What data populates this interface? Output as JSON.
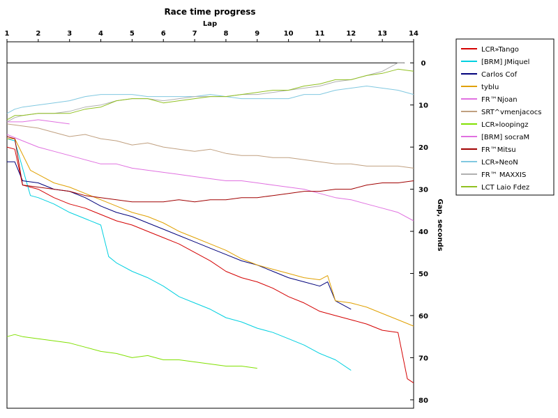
{
  "chart_data": {
    "type": "line",
    "title": "Race time progress",
    "xlabel": "Lap",
    "ylabel": "Gap, seconds",
    "xlim": [
      1,
      14
    ],
    "ylim": [
      -5,
      82
    ],
    "y_inverted": true,
    "x_ticks": [
      1,
      2,
      3,
      4,
      5,
      6,
      7,
      8,
      9,
      10,
      11,
      12,
      13,
      14
    ],
    "y_ticks": [
      0,
      10,
      20,
      30,
      40,
      50,
      60,
      70,
      80
    ],
    "grid": false,
    "legend_position": "right",
    "series": [
      {
        "name": "LCR»Tango",
        "color": "#d40000",
        "x": [
          1,
          1.25,
          1.5,
          2,
          2.5,
          3,
          3.5,
          4,
          4.5,
          5,
          5.5,
          6,
          6.5,
          7,
          7.5,
          8,
          8.5,
          9,
          9.5,
          10,
          10.5,
          11,
          11.5,
          12,
          12.5,
          13,
          13.5,
          13.8,
          14
        ],
        "y": [
          20,
          20.5,
          29,
          30,
          32,
          33.5,
          34.5,
          36,
          37.5,
          38.5,
          40,
          41.5,
          43,
          45,
          47,
          49.5,
          51,
          52,
          53.5,
          55.5,
          57,
          59,
          60,
          61,
          62,
          63.5,
          64,
          75,
          76
        ]
      },
      {
        "name": "[BRM] JMiquel",
        "color": "#00d0e0",
        "x": [
          1,
          1.25,
          1.75,
          2,
          2.5,
          3,
          3.5,
          4,
          4.25,
          4.5,
          5,
          5.5,
          6,
          6.5,
          7,
          7.5,
          8,
          8.5,
          9,
          9.5,
          10,
          10.5,
          11,
          11.5,
          12
        ],
        "y": [
          18,
          18.5,
          31.5,
          32,
          33.5,
          35.5,
          37,
          38.5,
          46,
          47.5,
          49.5,
          51,
          53,
          55.5,
          57,
          58.5,
          60.5,
          61.5,
          63,
          64,
          65.5,
          67,
          69,
          70.5,
          73
        ]
      },
      {
        "name": "Carlos Cof",
        "color": "#00007a",
        "x": [
          1,
          1.25,
          1.5,
          2,
          2.5,
          3,
          3.5,
          4,
          4.5,
          5,
          5.5,
          6,
          6.5,
          7,
          7.5,
          8,
          8.5,
          9,
          9.5,
          10,
          10.5,
          11,
          11.25,
          11.5,
          12
        ],
        "y": [
          23.5,
          23.5,
          28,
          28.5,
          30,
          30.5,
          32,
          34,
          35.5,
          36.5,
          38,
          39.5,
          41,
          42.5,
          44,
          45.5,
          47,
          48,
          49.5,
          51,
          52,
          53,
          52,
          56.5,
          58.5
        ]
      },
      {
        "name": "tyblu",
        "color": "#e0a000",
        "x": [
          1,
          1.25,
          1.75,
          2,
          2.5,
          3,
          3.5,
          4,
          4.5,
          5,
          5.5,
          6,
          6.5,
          7,
          7.5,
          8,
          8.5,
          9,
          9.5,
          10,
          10.5,
          11,
          11.25,
          11.5,
          12,
          12.5,
          13,
          13.5,
          14
        ],
        "y": [
          18,
          18,
          25.5,
          26.5,
          28.5,
          29.5,
          31,
          32.5,
          34,
          35.5,
          36.5,
          38,
          40,
          41.5,
          43,
          44.5,
          46.5,
          48,
          49,
          50,
          51,
          51.5,
          50.5,
          56.5,
          57,
          58,
          59.5,
          61,
          62.5
        ]
      },
      {
        "name": "FR™Njoan",
        "color": "#e070e0",
        "x": [
          1,
          1.25,
          1.5,
          2,
          2.5,
          3
        ],
        "y": [
          14,
          14,
          14,
          13.5,
          14,
          14.5
        ]
      },
      {
        "name": "SRT^vmenjacocs",
        "color": "#c0a080",
        "x": [
          1,
          1.5,
          2,
          2.5,
          3,
          3.5,
          4,
          4.5,
          5,
          5.5,
          6,
          6.5,
          7,
          7.5,
          8,
          8.5,
          9,
          9.5,
          10,
          10.5,
          11,
          11.5,
          12,
          12.5,
          13,
          13.5,
          14
        ],
        "y": [
          14.5,
          15,
          15.5,
          16.5,
          17.5,
          17,
          18,
          18.5,
          19.5,
          19,
          20,
          20.5,
          21,
          20.5,
          21.5,
          22,
          22,
          22.5,
          22.5,
          23,
          23.5,
          24,
          24,
          24.5,
          24.5,
          24.5,
          25
        ]
      },
      {
        "name": "LCR»loopingz",
        "color": "#80e000",
        "x": [
          1,
          1.25,
          1.5,
          2,
          2.5,
          3,
          3.5,
          4,
          4.5,
          5,
          5.5,
          6,
          6.5,
          7,
          7.5,
          8,
          8.5,
          9
        ],
        "y": [
          65,
          64.5,
          65,
          65.5,
          66,
          66.5,
          67.5,
          68.5,
          69,
          70,
          69.5,
          70.5,
          70.5,
          71,
          71.5,
          72,
          72,
          72.5
        ]
      },
      {
        "name": "[BRM] socraM",
        "color": "#e070e0",
        "x": [
          1,
          1.5,
          2,
          2.5,
          3,
          3.5,
          4,
          4.5,
          5,
          5.5,
          6,
          6.5,
          7,
          7.5,
          8,
          8.5,
          9,
          9.5,
          10,
          10.5,
          11,
          11.5,
          12,
          12.5,
          13,
          13.5,
          14
        ],
        "y": [
          17,
          18.5,
          20,
          21,
          22,
          23,
          24,
          24,
          25,
          25.5,
          26,
          26.5,
          27,
          27.5,
          28,
          28,
          28.5,
          29,
          29.5,
          30,
          31,
          32,
          32.5,
          33.5,
          34.5,
          35.5,
          37.5
        ]
      },
      {
        "name": "FR™Mitsu",
        "color": "#a00000",
        "x": [
          1,
          1.25,
          1.5,
          2,
          2.5,
          3,
          3.5,
          4,
          4.5,
          5,
          5.5,
          6,
          6.5,
          7,
          7.5,
          8,
          8.5,
          9,
          9.5,
          10,
          10.5,
          11,
          11.5,
          12,
          12.5,
          13,
          13.5,
          14
        ],
        "y": [
          17.5,
          18,
          29,
          29.5,
          30,
          30.5,
          31.5,
          32,
          32.5,
          33,
          33,
          33,
          32.5,
          33,
          32.5,
          32.5,
          32,
          32,
          31.5,
          31,
          30.5,
          30.5,
          30,
          30,
          29,
          28.5,
          28.5,
          28
        ]
      },
      {
        "name": "LCR»NeoN",
        "color": "#80c8e0",
        "x": [
          1,
          1.25,
          1.5,
          2,
          2.5,
          3,
          3.5,
          4,
          4.5,
          5,
          5.5,
          6,
          6.5,
          7,
          7.5,
          8,
          8.5,
          9,
          9.5,
          10,
          10.5,
          11,
          11.5,
          12,
          12.5,
          13,
          13.5,
          14
        ],
        "y": [
          12,
          11,
          10.5,
          10,
          9.5,
          9,
          8,
          7.5,
          7.5,
          7.5,
          8,
          8,
          8,
          8,
          7.5,
          8,
          8.5,
          8.5,
          8.5,
          8.5,
          7.5,
          7.5,
          6.5,
          6,
          5.5,
          6,
          6.5,
          7.5
        ]
      },
      {
        "name": "FR™ MAXXIS",
        "color": "#b0b0b0",
        "x": [
          1,
          1.25,
          1.5,
          2,
          2.5,
          3,
          3.5,
          4,
          4.5,
          5,
          5.5,
          6,
          6.5,
          7,
          7.5,
          8,
          8.5,
          9,
          9.5,
          10,
          10.5,
          11,
          11.5,
          12,
          12.5,
          13,
          13.5,
          13.7
        ],
        "y": [
          14,
          13,
          12.5,
          12,
          12,
          11.5,
          10.5,
          10,
          9,
          8.5,
          8.5,
          9,
          8.5,
          8,
          8,
          8,
          7.5,
          7.5,
          7,
          6.5,
          6,
          5.5,
          4.5,
          4,
          3,
          2,
          0,
          0
        ]
      },
      {
        "name": "LCT Laio Fdez",
        "color": "#90c020",
        "x": [
          1,
          1.25,
          1.5,
          2,
          2.5,
          3,
          3.5,
          4,
          4.5,
          5,
          5.5,
          6,
          6.5,
          7,
          7.5,
          8,
          8.5,
          9,
          9.5,
          10,
          10.5,
          11,
          11.5,
          12,
          12.5,
          13,
          13.5,
          14
        ],
        "y": [
          13.5,
          12.5,
          12.5,
          12,
          12,
          12,
          11,
          10.5,
          9,
          8.5,
          8.5,
          9.5,
          9,
          8.5,
          8,
          8,
          7.5,
          7,
          6.5,
          6.5,
          5.5,
          5,
          4,
          4,
          3,
          2.5,
          1.5,
          2
        ]
      }
    ]
  }
}
